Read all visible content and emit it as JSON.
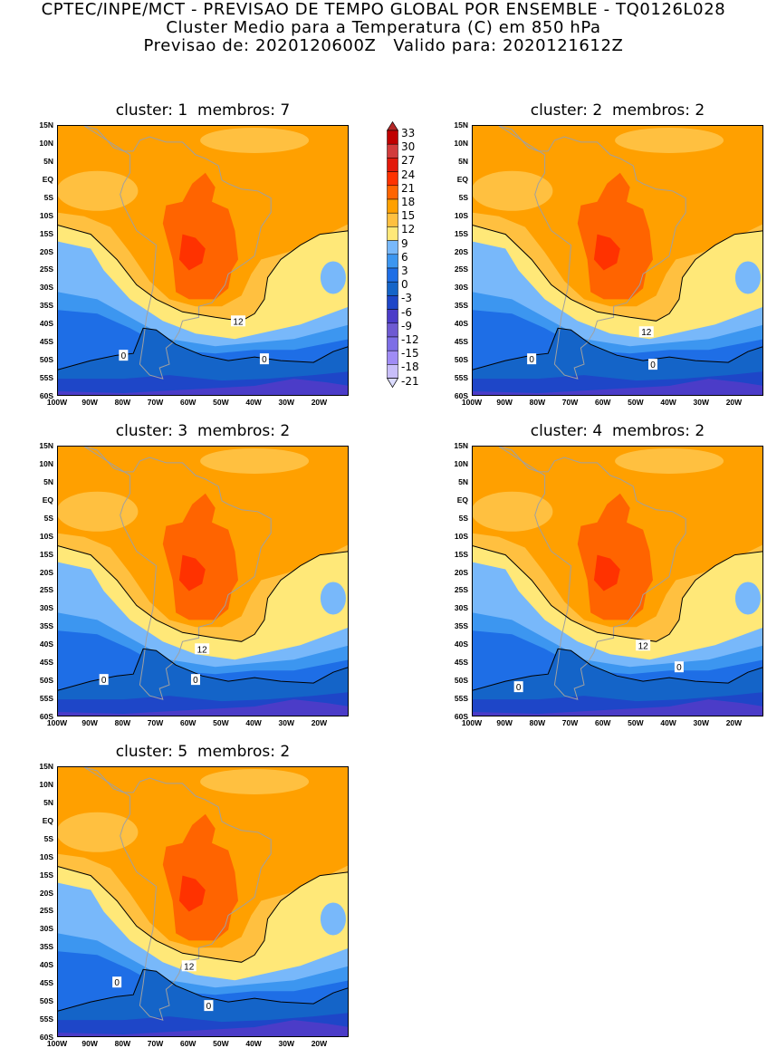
{
  "header": {
    "line1": "CPTEC/INPE/MCT - PREVISAO DE TEMPO GLOBAL POR ENSEMBLE - TQ0126L028",
    "line2": "Cluster Medio para a Temperatura (C) em 850 hPa",
    "line3": "Previsao de: 2020120600Z   Valido para: 2020121612Z"
  },
  "colorbar": {
    "levels": [
      "33",
      "30",
      "27",
      "24",
      "21",
      "18",
      "15",
      "12",
      "9",
      "6",
      "3",
      "0",
      "-3",
      "-6",
      "-9",
      "-12",
      "-15",
      "-18",
      "-21"
    ],
    "colors": [
      "#b42828",
      "#c00000",
      "#d23c3c",
      "#e2190b",
      "#ff3200",
      "#ff6400",
      "#ffa000",
      "#ffc040",
      "#ffe878",
      "#78b8fa",
      "#3c96f0",
      "#1e6ee6",
      "#1464c8",
      "#1e46c8",
      "#4b3cc8",
      "#6e5ad2",
      "#7d6ee6",
      "#a08cf5",
      "#c8befa",
      "#dcdcff"
    ]
  },
  "axes": {
    "lat_labels": [
      "15N",
      "10N",
      "5N",
      "EQ",
      "5S",
      "10S",
      "15S",
      "20S",
      "25S",
      "30S",
      "35S",
      "40S",
      "45S",
      "50S",
      "55S",
      "60S"
    ],
    "lon_labels": [
      "100W",
      "90W",
      "80W",
      "70W",
      "60W",
      "50W",
      "40W",
      "30W",
      "20W"
    ],
    "lon_range": [
      -100,
      -11
    ],
    "lat_range": [
      -60,
      15
    ]
  },
  "panels": [
    {
      "title": "cluster: 1  membros: 7",
      "labels": [
        {
          "text": "12",
          "lon": -45,
          "lat": -39
        },
        {
          "text": "0",
          "lon": -80,
          "lat": -48.5
        },
        {
          "text": "0",
          "lon": -37,
          "lat": -49.5
        }
      ]
    },
    {
      "title": "cluster: 2  membros: 2",
      "labels": [
        {
          "text": "12",
          "lon": -47,
          "lat": -42
        },
        {
          "text": "0",
          "lon": -82,
          "lat": -49.5
        },
        {
          "text": "0",
          "lon": -45,
          "lat": -51
        }
      ]
    },
    {
      "title": "cluster: 3  membros: 2",
      "labels": [
        {
          "text": "12",
          "lon": -56,
          "lat": -41
        },
        {
          "text": "0",
          "lon": -86,
          "lat": -49.5
        },
        {
          "text": "0",
          "lon": -58,
          "lat": -49.5
        }
      ]
    },
    {
      "title": "cluster: 4  membros: 2",
      "labels": [
        {
          "text": "12",
          "lon": -48,
          "lat": -40
        },
        {
          "text": "0",
          "lon": -86,
          "lat": -51.5
        },
        {
          "text": "0",
          "lon": -37,
          "lat": -46
        }
      ]
    },
    {
      "title": "cluster: 5  membros: 2",
      "labels": [
        {
          "text": "12",
          "lon": -60,
          "lat": -40
        },
        {
          "text": "0",
          "lon": -82,
          "lat": -44.5
        },
        {
          "text": "0",
          "lon": -54,
          "lat": -51
        }
      ]
    }
  ]
}
